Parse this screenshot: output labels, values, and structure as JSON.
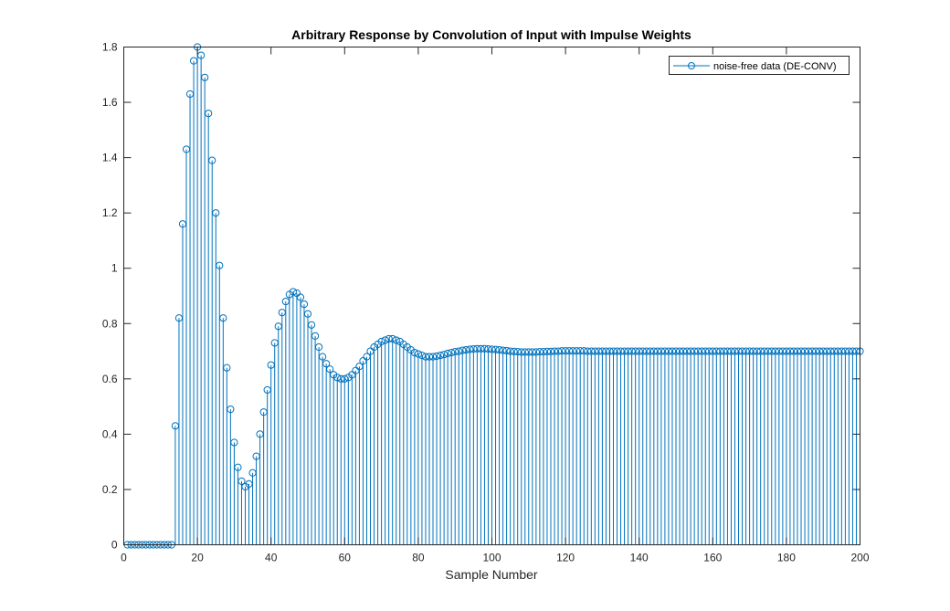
{
  "chart_data": {
    "type": "stem",
    "title": "Arbitrary Response by Convolution of Input with Impulse Weights",
    "xlabel": "Sample Number",
    "ylabel": "",
    "xlim": [
      0,
      200
    ],
    "ylim": [
      0,
      1.8
    ],
    "xticks": [
      "0",
      "20",
      "40",
      "60",
      "80",
      "100",
      "120",
      "140",
      "160",
      "180",
      "200"
    ],
    "yticks": [
      "0",
      "0.2",
      "0.4",
      "0.6",
      "0.8",
      "1",
      "1.2",
      "1.4",
      "1.6",
      "1.8"
    ],
    "grid": false,
    "legend": {
      "position": "top-right",
      "entries": [
        "noise-free data (DE-CONV)"
      ]
    },
    "colors": {
      "series": "#0072BD",
      "axes": "#262626"
    },
    "series": [
      {
        "name": "noise-free data (DE-CONV)",
        "points": [
          [
            1,
            0.0
          ],
          [
            2,
            0.0
          ],
          [
            3,
            0.0
          ],
          [
            4,
            0.0
          ],
          [
            5,
            0.0
          ],
          [
            6,
            0.0
          ],
          [
            7,
            0.0
          ],
          [
            8,
            0.0
          ],
          [
            9,
            0.0
          ],
          [
            10,
            0.0
          ],
          [
            11,
            0.0
          ],
          [
            12,
            0.0
          ],
          [
            13,
            0.0
          ],
          [
            14,
            0.43
          ],
          [
            15,
            0.82
          ],
          [
            16,
            1.16
          ],
          [
            17,
            1.43
          ],
          [
            18,
            1.63
          ],
          [
            19,
            1.75
          ],
          [
            20,
            1.8
          ],
          [
            21,
            1.77
          ],
          [
            22,
            1.69
          ],
          [
            23,
            1.56
          ],
          [
            24,
            1.39
          ],
          [
            25,
            1.2
          ],
          [
            26,
            1.01
          ],
          [
            27,
            0.82
          ],
          [
            28,
            0.64
          ],
          [
            29,
            0.49
          ],
          [
            30,
            0.37
          ],
          [
            31,
            0.28
          ],
          [
            32,
            0.23
          ],
          [
            33,
            0.21
          ],
          [
            34,
            0.22
          ],
          [
            35,
            0.26
          ],
          [
            36,
            0.32
          ],
          [
            37,
            0.4
          ],
          [
            38,
            0.48
          ],
          [
            39,
            0.56
          ],
          [
            40,
            0.65
          ],
          [
            41,
            0.73
          ],
          [
            42,
            0.79
          ],
          [
            43,
            0.84
          ],
          [
            44,
            0.88
          ],
          [
            45,
            0.905
          ],
          [
            46,
            0.915
          ],
          [
            47,
            0.91
          ],
          [
            48,
            0.895
          ],
          [
            49,
            0.87
          ],
          [
            50,
            0.835
          ],
          [
            51,
            0.795
          ],
          [
            52,
            0.755
          ],
          [
            53,
            0.715
          ],
          [
            54,
            0.68
          ],
          [
            55,
            0.655
          ],
          [
            56,
            0.635
          ],
          [
            57,
            0.615
          ],
          [
            58,
            0.605
          ],
          [
            59,
            0.6
          ],
          [
            60,
            0.6
          ],
          [
            61,
            0.605
          ],
          [
            62,
            0.615
          ],
          [
            63,
            0.63
          ],
          [
            64,
            0.645
          ],
          [
            65,
            0.665
          ],
          [
            66,
            0.68
          ],
          [
            67,
            0.7
          ],
          [
            68,
            0.715
          ],
          [
            69,
            0.725
          ],
          [
            70,
            0.735
          ],
          [
            71,
            0.74
          ],
          [
            72,
            0.745
          ],
          [
            73,
            0.745
          ],
          [
            74,
            0.74
          ],
          [
            75,
            0.735
          ],
          [
            76,
            0.725
          ],
          [
            77,
            0.715
          ],
          [
            78,
            0.705
          ],
          [
            79,
            0.695
          ],
          [
            80,
            0.69
          ],
          [
            81,
            0.685
          ],
          [
            82,
            0.68
          ],
          [
            83,
            0.68
          ],
          [
            84,
            0.68
          ],
          [
            85,
            0.682
          ],
          [
            86,
            0.685
          ],
          [
            87,
            0.688
          ],
          [
            88,
            0.692
          ],
          [
            89,
            0.695
          ],
          [
            90,
            0.698
          ],
          [
            91,
            0.7
          ],
          [
            92,
            0.703
          ],
          [
            93,
            0.705
          ],
          [
            94,
            0.707
          ],
          [
            95,
            0.708
          ],
          [
            96,
            0.709
          ],
          [
            97,
            0.709
          ],
          [
            98,
            0.709
          ],
          [
            99,
            0.708
          ],
          [
            100,
            0.707
          ],
          [
            101,
            0.706
          ],
          [
            102,
            0.705
          ],
          [
            103,
            0.703
          ],
          [
            104,
            0.702
          ],
          [
            105,
            0.7
          ],
          [
            106,
            0.699
          ],
          [
            107,
            0.698
          ],
          [
            108,
            0.697
          ],
          [
            109,
            0.697
          ],
          [
            110,
            0.697
          ],
          [
            111,
            0.697
          ],
          [
            112,
            0.697
          ],
          [
            113,
            0.698
          ],
          [
            114,
            0.698
          ],
          [
            115,
            0.699
          ],
          [
            116,
            0.699
          ],
          [
            117,
            0.7
          ],
          [
            118,
            0.7
          ],
          [
            119,
            0.701
          ],
          [
            120,
            0.701
          ],
          [
            121,
            0.701
          ],
          [
            122,
            0.701
          ],
          [
            123,
            0.701
          ],
          [
            124,
            0.701
          ],
          [
            125,
            0.701
          ],
          [
            126,
            0.7
          ],
          [
            127,
            0.7
          ],
          [
            128,
            0.7
          ],
          [
            129,
            0.7
          ],
          [
            130,
            0.7
          ],
          [
            131,
            0.7
          ],
          [
            132,
            0.7
          ],
          [
            133,
            0.7
          ],
          [
            134,
            0.7
          ],
          [
            135,
            0.7
          ],
          [
            136,
            0.7
          ],
          [
            137,
            0.7
          ],
          [
            138,
            0.7
          ],
          [
            139,
            0.7
          ],
          [
            140,
            0.7
          ],
          [
            141,
            0.7
          ],
          [
            142,
            0.7
          ],
          [
            143,
            0.7
          ],
          [
            144,
            0.7
          ],
          [
            145,
            0.7
          ],
          [
            146,
            0.7
          ],
          [
            147,
            0.7
          ],
          [
            148,
            0.7
          ],
          [
            149,
            0.7
          ],
          [
            150,
            0.7
          ],
          [
            151,
            0.7
          ],
          [
            152,
            0.7
          ],
          [
            153,
            0.7
          ],
          [
            154,
            0.7
          ],
          [
            155,
            0.7
          ],
          [
            156,
            0.7
          ],
          [
            157,
            0.7
          ],
          [
            158,
            0.7
          ],
          [
            159,
            0.7
          ],
          [
            160,
            0.7
          ],
          [
            161,
            0.7
          ],
          [
            162,
            0.7
          ],
          [
            163,
            0.7
          ],
          [
            164,
            0.7
          ],
          [
            165,
            0.7
          ],
          [
            166,
            0.7
          ],
          [
            167,
            0.7
          ],
          [
            168,
            0.7
          ],
          [
            169,
            0.7
          ],
          [
            170,
            0.7
          ],
          [
            171,
            0.7
          ],
          [
            172,
            0.7
          ],
          [
            173,
            0.7
          ],
          [
            174,
            0.7
          ],
          [
            175,
            0.7
          ],
          [
            176,
            0.7
          ],
          [
            177,
            0.7
          ],
          [
            178,
            0.7
          ],
          [
            179,
            0.7
          ],
          [
            180,
            0.7
          ],
          [
            181,
            0.7
          ],
          [
            182,
            0.7
          ],
          [
            183,
            0.7
          ],
          [
            184,
            0.7
          ],
          [
            185,
            0.7
          ],
          [
            186,
            0.7
          ],
          [
            187,
            0.7
          ],
          [
            188,
            0.7
          ],
          [
            189,
            0.7
          ],
          [
            190,
            0.7
          ],
          [
            191,
            0.7
          ],
          [
            192,
            0.7
          ],
          [
            193,
            0.7
          ],
          [
            194,
            0.7
          ],
          [
            195,
            0.7
          ],
          [
            196,
            0.7
          ],
          [
            197,
            0.7
          ],
          [
            198,
            0.7
          ],
          [
            199,
            0.7
          ],
          [
            200,
            0.7
          ]
        ]
      }
    ]
  }
}
